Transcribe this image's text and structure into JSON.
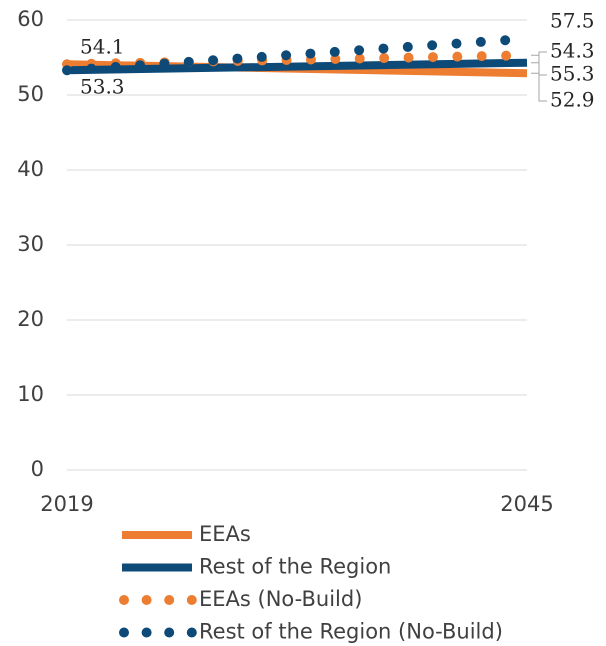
{
  "chart_data": {
    "type": "line",
    "x": [
      2019,
      2045
    ],
    "xlim": [
      2019,
      2045
    ],
    "xticks": [
      2019,
      2045
    ],
    "ylim": [
      0,
      60
    ],
    "yticks": [
      0,
      10,
      20,
      30,
      40,
      50,
      60
    ],
    "grid": true,
    "series": [
      {
        "name": "EEAs",
        "color": "#ed7d31",
        "style": "solid",
        "values": [
          54.1,
          52.9
        ]
      },
      {
        "name": "Rest of the Region",
        "color": "#0e4a78",
        "style": "solid",
        "values": [
          53.3,
          54.3
        ]
      },
      {
        "name": "EEAs (No-Build)",
        "color": "#ed7d31",
        "style": "dotted",
        "values": [
          54.1,
          55.3
        ]
      },
      {
        "name": "Rest of the Region (No-Build)",
        "color": "#0e4a78",
        "style": "dotted",
        "values": [
          53.3,
          57.5
        ]
      }
    ]
  }
}
